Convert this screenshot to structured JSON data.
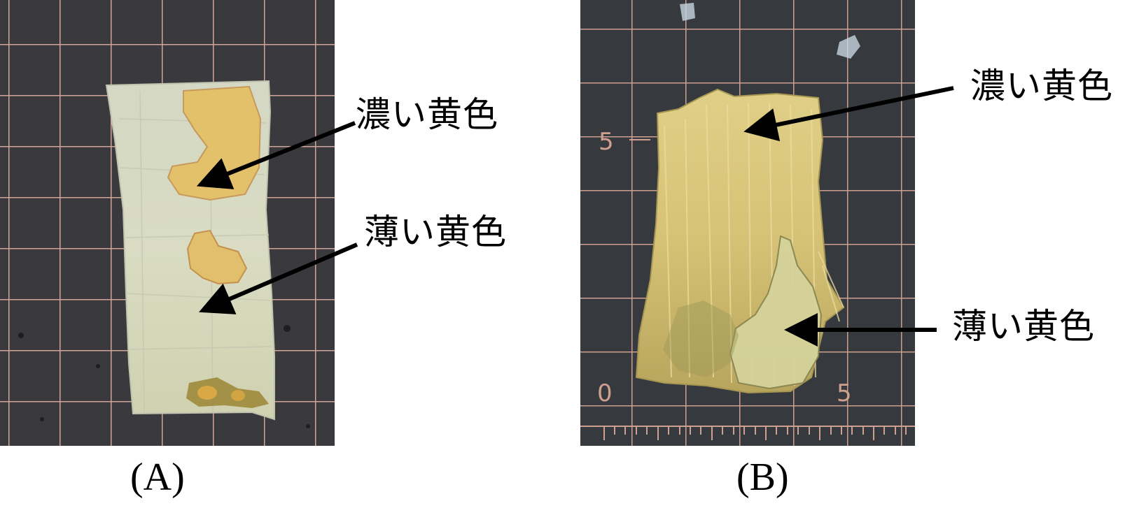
{
  "panels": [
    {
      "id": "A",
      "caption": "(A)",
      "labels": {
        "dark": "濃い黄色",
        "light": "薄い黄色"
      }
    },
    {
      "id": "B",
      "caption": "(B)",
      "labels": {
        "dark": "濃い黄色",
        "light": "薄い黄色"
      },
      "ruler_marks": [
        "5",
        "0",
        "5"
      ]
    }
  ],
  "colors": {
    "mat": "#3a3a3d",
    "grid": "#d6a89a",
    "sample_a": "#d9d9bd",
    "stain_dark": "#e4c46e",
    "sample_b": "#d5c579"
  }
}
